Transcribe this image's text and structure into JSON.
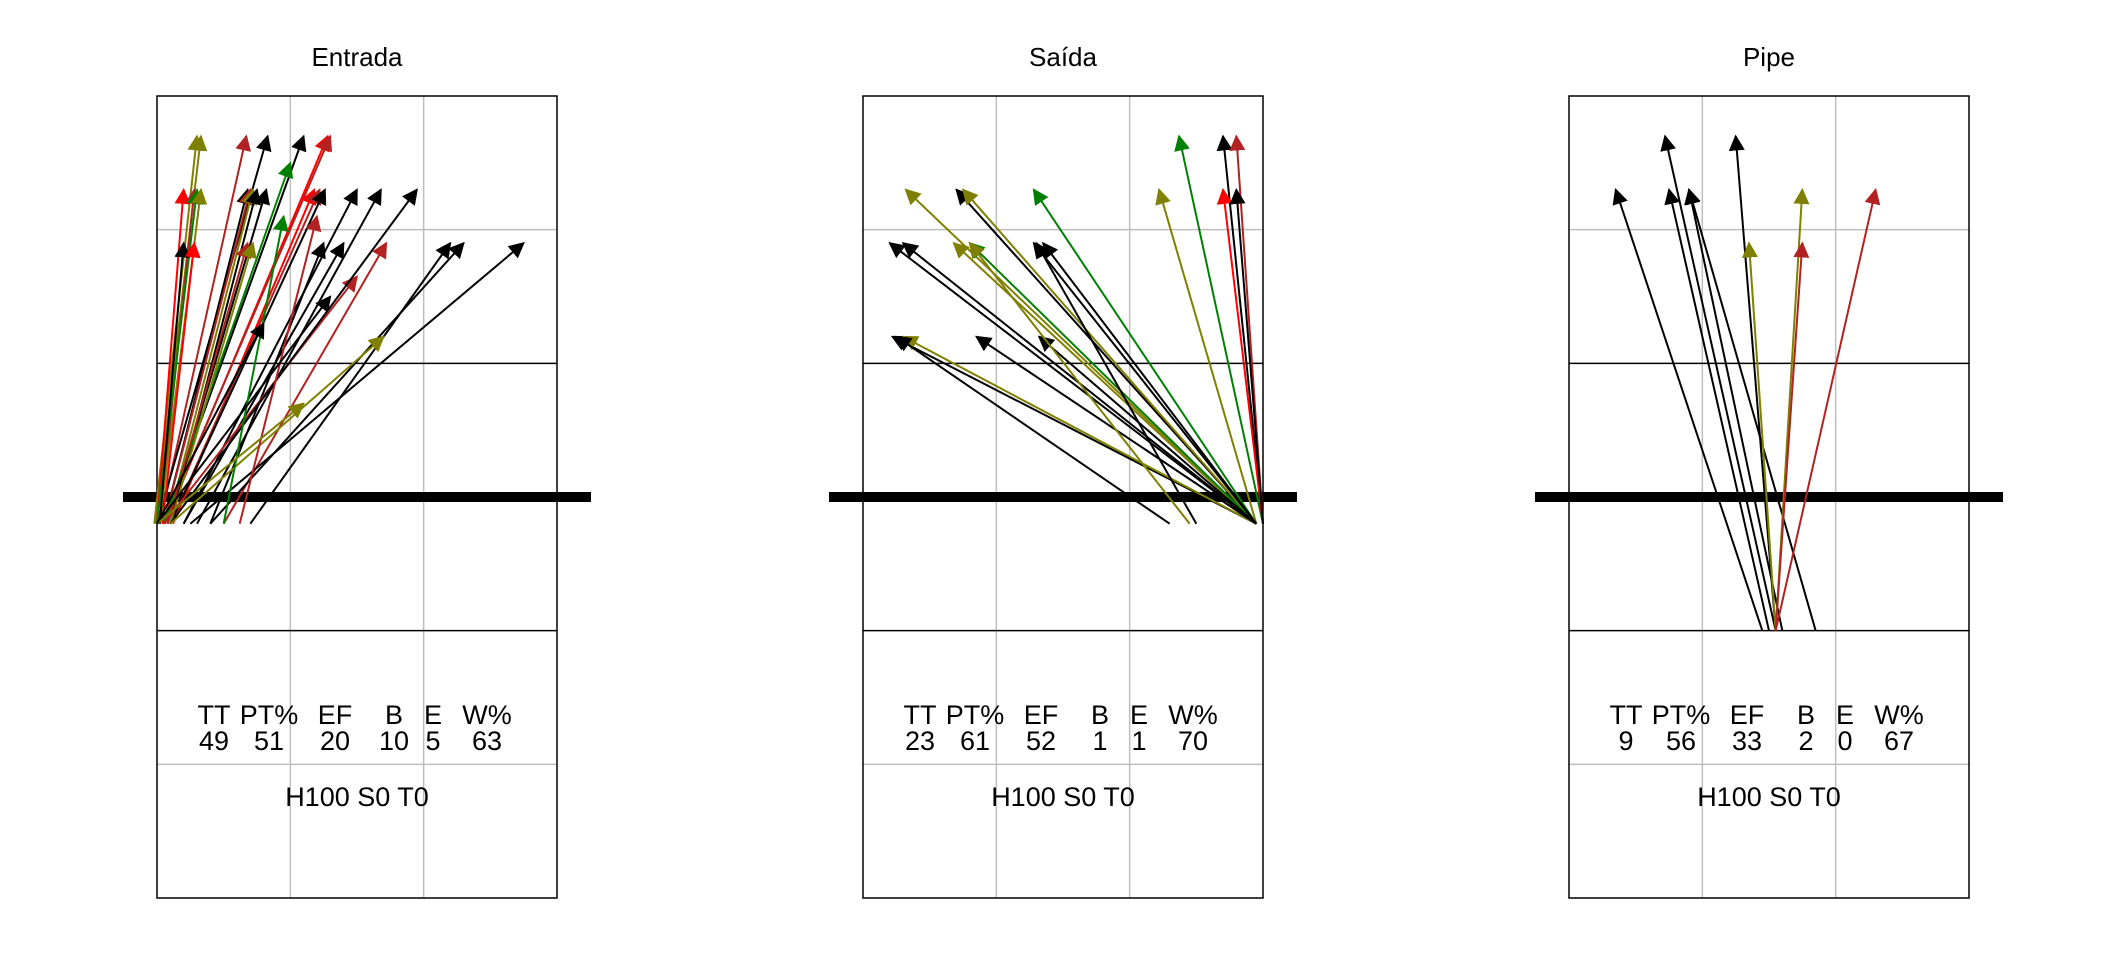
{
  "colors": {
    "black": "#000000",
    "olive": "#808000",
    "green": "#008000",
    "red": "#ff0000",
    "brown": "#b22222",
    "grid": "#bebebe"
  },
  "court": {
    "x_range": [
      0.5,
      3.5
    ],
    "y_range": [
      0.5,
      6.5
    ],
    "net_y": 3.5,
    "attack_line_y": 4.5,
    "stats_divider_y": 2.5,
    "grid_x": [
      1.5,
      2.5
    ],
    "grid_y": [
      1.5,
      5.5
    ]
  },
  "chart_data": [
    {
      "type": "arrow-plot",
      "title": "Entrada",
      "stats": {
        "headers": [
          "TT",
          "PT%",
          "EF",
          "B",
          "E",
          "W%"
        ],
        "values": [
          "49",
          "51",
          "20",
          "10",
          "5",
          "63"
        ],
        "footer": "H100 S0 T0"
      },
      "arrows": [
        {
          "from": [
            0.48,
            3.3
          ],
          "to": [
            0.8,
            6.2
          ],
          "color": "olive"
        },
        {
          "from": [
            0.49,
            3.3
          ],
          "to": [
            0.83,
            6.2
          ],
          "color": "olive"
        },
        {
          "from": [
            0.52,
            3.3
          ],
          "to": [
            1.17,
            6.2
          ],
          "color": "brown"
        },
        {
          "from": [
            0.5,
            3.3
          ],
          "to": [
            1.33,
            6.2
          ],
          "color": "black"
        },
        {
          "from": [
            0.55,
            3.3
          ],
          "to": [
            1.6,
            6.2
          ],
          "color": "black"
        },
        {
          "from": [
            0.56,
            3.3
          ],
          "to": [
            1.78,
            6.2
          ],
          "color": "red"
        },
        {
          "from": [
            0.55,
            3.3
          ],
          "to": [
            1.8,
            6.2
          ],
          "color": "brown"
        },
        {
          "from": [
            0.5,
            3.3
          ],
          "to": [
            0.7,
            5.8
          ],
          "color": "red"
        },
        {
          "from": [
            0.52,
            3.3
          ],
          "to": [
            0.78,
            5.8
          ],
          "color": "brown"
        },
        {
          "from": [
            0.5,
            3.3
          ],
          "to": [
            0.8,
            5.8
          ],
          "color": "green"
        },
        {
          "from": [
            0.52,
            3.3
          ],
          "to": [
            0.83,
            5.8
          ],
          "color": "olive"
        },
        {
          "from": [
            0.55,
            3.3
          ],
          "to": [
            1.18,
            5.8
          ],
          "color": "black"
        },
        {
          "from": [
            0.55,
            3.3
          ],
          "to": [
            1.2,
            5.8
          ],
          "color": "brown"
        },
        {
          "from": [
            0.58,
            3.3
          ],
          "to": [
            1.22,
            5.8
          ],
          "color": "olive"
        },
        {
          "from": [
            0.6,
            3.3
          ],
          "to": [
            1.25,
            5.8
          ],
          "color": "black"
        },
        {
          "from": [
            0.58,
            3.3
          ],
          "to": [
            1.32,
            5.8
          ],
          "color": "black"
        },
        {
          "from": [
            0.62,
            3.3
          ],
          "to": [
            1.68,
            5.8
          ],
          "color": "red"
        },
        {
          "from": [
            0.6,
            3.3
          ],
          "to": [
            1.72,
            5.8
          ],
          "color": "brown"
        },
        {
          "from": [
            0.6,
            3.3
          ],
          "to": [
            1.76,
            5.8
          ],
          "color": "black"
        },
        {
          "from": [
            0.7,
            3.3
          ],
          "to": [
            2.0,
            5.8
          ],
          "color": "black"
        },
        {
          "from": [
            0.8,
            3.3
          ],
          "to": [
            2.18,
            5.8
          ],
          "color": "black"
        },
        {
          "from": [
            0.55,
            3.3
          ],
          "to": [
            1.5,
            6.0
          ],
          "color": "green"
        },
        {
          "from": [
            0.52,
            3.3
          ],
          "to": [
            0.7,
            5.4
          ],
          "color": "black"
        },
        {
          "from": [
            0.54,
            3.3
          ],
          "to": [
            0.78,
            5.4
          ],
          "color": "red"
        },
        {
          "from": [
            0.58,
            3.3
          ],
          "to": [
            1.18,
            5.4
          ],
          "color": "brown"
        },
        {
          "from": [
            0.6,
            3.3
          ],
          "to": [
            1.22,
            5.4
          ],
          "color": "olive"
        },
        {
          "from": [
            0.9,
            3.3
          ],
          "to": [
            1.75,
            5.4
          ],
          "color": "black"
        },
        {
          "from": [
            0.7,
            3.3
          ],
          "to": [
            1.9,
            5.4
          ],
          "color": "black"
        },
        {
          "from": [
            1.0,
            3.3
          ],
          "to": [
            2.22,
            5.4
          ],
          "color": "brown"
        },
        {
          "from": [
            1.2,
            3.3
          ],
          "to": [
            2.7,
            5.4
          ],
          "color": "black"
        },
        {
          "from": [
            0.9,
            3.3
          ],
          "to": [
            2.8,
            5.4
          ],
          "color": "black"
        },
        {
          "from": [
            0.75,
            3.3
          ],
          "to": [
            3.25,
            5.4
          ],
          "color": "black"
        },
        {
          "from": [
            0.55,
            3.3
          ],
          "to": [
            2.0,
            5.15
          ],
          "color": "brown"
        },
        {
          "from": [
            0.6,
            3.3
          ],
          "to": [
            2.45,
            5.8
          ],
          "color": "black"
        },
        {
          "from": [
            0.6,
            3.3
          ],
          "to": [
            2.2,
            4.7
          ],
          "color": "olive"
        },
        {
          "from": [
            1.12,
            3.3
          ],
          "to": [
            1.7,
            5.6
          ],
          "color": "brown"
        },
        {
          "from": [
            1.0,
            3.3
          ],
          "to": [
            1.45,
            5.6
          ],
          "color": "green"
        },
        {
          "from": [
            0.5,
            3.3
          ],
          "to": [
            1.8,
            5.0
          ],
          "color": "black"
        },
        {
          "from": [
            0.5,
            3.3
          ],
          "to": [
            1.6,
            4.2
          ],
          "color": "olive"
        },
        {
          "from": [
            0.5,
            3.3
          ],
          "to": [
            1.3,
            4.8
          ],
          "color": "black"
        }
      ]
    },
    {
      "type": "arrow-plot",
      "title": "Saída",
      "stats": {
        "headers": [
          "TT",
          "PT%",
          "EF",
          "B",
          "E",
          "W%"
        ],
        "values": [
          "23",
          "61",
          "52",
          "1",
          "1",
          "70"
        ],
        "footer": "H100 S0 T0"
      },
      "arrows": [
        {
          "from": [
            3.5,
            3.3
          ],
          "to": [
            2.87,
            6.2
          ],
          "color": "green"
        },
        {
          "from": [
            3.5,
            3.3
          ],
          "to": [
            3.2,
            6.2
          ],
          "color": "black"
        },
        {
          "from": [
            3.5,
            3.3
          ],
          "to": [
            3.3,
            6.2
          ],
          "color": "brown"
        },
        {
          "from": [
            3.5,
            3.3
          ],
          "to": [
            3.2,
            5.8
          ],
          "color": "red"
        },
        {
          "from": [
            3.5,
            3.3
          ],
          "to": [
            3.3,
            5.8
          ],
          "color": "black"
        },
        {
          "from": [
            3.45,
            3.3
          ],
          "to": [
            0.82,
            5.8
          ],
          "color": "olive"
        },
        {
          "from": [
            3.45,
            3.3
          ],
          "to": [
            1.2,
            5.8
          ],
          "color": "black"
        },
        {
          "from": [
            3.45,
            3.3
          ],
          "to": [
            1.25,
            5.8
          ],
          "color": "olive"
        },
        {
          "from": [
            3.45,
            3.3
          ],
          "to": [
            1.78,
            5.8
          ],
          "color": "green"
        },
        {
          "from": [
            3.45,
            3.3
          ],
          "to": [
            2.72,
            5.8
          ],
          "color": "olive"
        },
        {
          "from": [
            3.45,
            3.3
          ],
          "to": [
            0.7,
            5.4
          ],
          "color": "black"
        },
        {
          "from": [
            3.45,
            3.3
          ],
          "to": [
            0.8,
            5.4
          ],
          "color": "black"
        },
        {
          "from": [
            3.45,
            3.3
          ],
          "to": [
            1.18,
            5.4
          ],
          "color": "olive"
        },
        {
          "from": [
            3.45,
            3.3
          ],
          "to": [
            1.3,
            5.4
          ],
          "color": "green"
        },
        {
          "from": [
            3.45,
            3.3
          ],
          "to": [
            1.78,
            5.4
          ],
          "color": "black"
        },
        {
          "from": [
            3.45,
            3.3
          ],
          "to": [
            1.85,
            5.4
          ],
          "color": "black"
        },
        {
          "from": [
            3.45,
            3.3
          ],
          "to": [
            0.72,
            4.7
          ],
          "color": "black"
        },
        {
          "from": [
            3.45,
            3.3
          ],
          "to": [
            0.8,
            4.7
          ],
          "color": "olive"
        },
        {
          "from": [
            3.45,
            3.3
          ],
          "to": [
            1.35,
            4.7
          ],
          "color": "black"
        },
        {
          "from": [
            3.45,
            3.3
          ],
          "to": [
            1.82,
            4.7
          ],
          "color": "black"
        },
        {
          "from": [
            2.8,
            3.3
          ],
          "to": [
            0.75,
            4.7
          ],
          "color": "black"
        },
        {
          "from": [
            2.95,
            3.3
          ],
          "to": [
            1.3,
            5.4
          ],
          "color": "olive"
        },
        {
          "from": [
            3.0,
            3.3
          ],
          "to": [
            1.8,
            5.4
          ],
          "color": "black"
        }
      ]
    },
    {
      "type": "arrow-plot",
      "title": "Pipe",
      "stats": {
        "headers": [
          "TT",
          "PT%",
          "EF",
          "B",
          "E",
          "W%"
        ],
        "values": [
          "9",
          "56",
          "33",
          "2",
          "0",
          "67"
        ],
        "footer": "H100 S0 T0"
      },
      "arrows": [
        {
          "from": [
            1.95,
            2.5
          ],
          "to": [
            0.85,
            5.8
          ],
          "color": "black"
        },
        {
          "from": [
            2.0,
            2.5
          ],
          "to": [
            1.25,
            5.8
          ],
          "color": "black"
        },
        {
          "from": [
            2.1,
            2.5
          ],
          "to": [
            1.4,
            5.8
          ],
          "color": "black"
        },
        {
          "from": [
            2.35,
            2.5
          ],
          "to": [
            1.4,
            5.8
          ],
          "color": "black"
        },
        {
          "from": [
            2.05,
            2.5
          ],
          "to": [
            1.22,
            6.2
          ],
          "color": "black"
        },
        {
          "from": [
            2.05,
            2.5
          ],
          "to": [
            1.75,
            6.2
          ],
          "color": "black"
        },
        {
          "from": [
            2.05,
            2.5
          ],
          "to": [
            1.85,
            5.4
          ],
          "color": "olive"
        },
        {
          "from": [
            2.05,
            2.5
          ],
          "to": [
            2.25,
            5.8
          ],
          "color": "olive"
        },
        {
          "from": [
            2.05,
            2.5
          ],
          "to": [
            2.25,
            5.4
          ],
          "color": "brown"
        },
        {
          "from": [
            2.05,
            2.5
          ],
          "to": [
            2.8,
            5.8
          ],
          "color": "brown"
        }
      ]
    }
  ]
}
